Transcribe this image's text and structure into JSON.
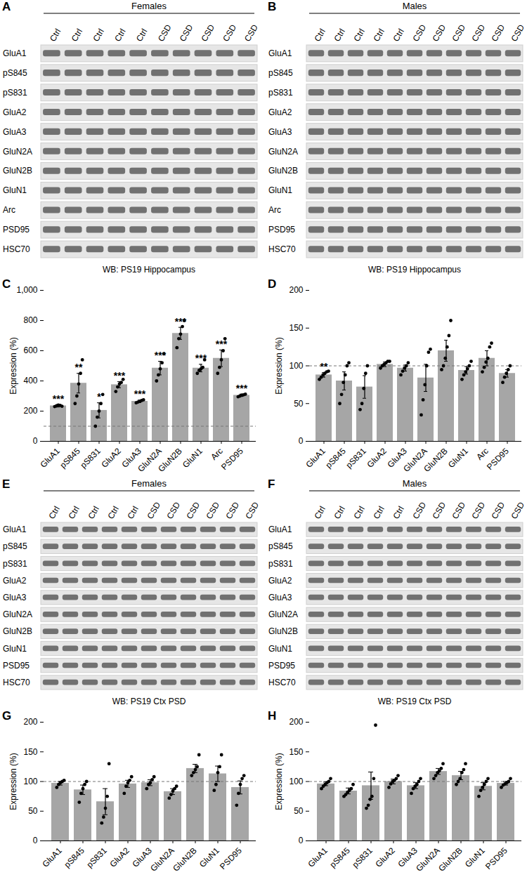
{
  "panels": [
    {
      "letter": "A",
      "header": "Females",
      "lanes": [
        "Ctrl",
        "Ctrl",
        "Ctrl",
        "Ctrl",
        "Ctrl",
        "CSD",
        "CSD",
        "CSD",
        "CSD",
        "CSD"
      ],
      "rows": [
        "GluA1",
        "pS845",
        "pS831",
        "GluA2",
        "GluA3",
        "GluN2A",
        "GluN2B",
        "GluN1",
        "Arc",
        "PSD95",
        "HSC70"
      ],
      "caption": "WB: PS19 Hippocampus"
    },
    {
      "letter": "B",
      "header": "Males",
      "lanes": [
        "Ctrl",
        "Ctrl",
        "Ctrl",
        "Ctrl",
        "Ctrl",
        "CSD",
        "CSD",
        "CSD",
        "CSD",
        "CSD",
        "CSD"
      ],
      "rows": [
        "GluA1",
        "pS845",
        "pS831",
        "GluA2",
        "GluA3",
        "GluN2A",
        "GluN2B",
        "GluN1",
        "Arc",
        "PSD95",
        "HSC70"
      ],
      "caption": "WB: PS19 Hippocampus"
    },
    {
      "letter": "E",
      "header": "Females",
      "lanes": [
        "Ctrl",
        "Ctrl",
        "Ctrl",
        "Ctrl",
        "Ctrl",
        "CSD",
        "CSD",
        "CSD",
        "CSD",
        "CSD",
        "CSD"
      ],
      "rows": [
        "GluA1",
        "pS845",
        "pS831",
        "GluA2",
        "GluA3",
        "GluN2A",
        "GluN2B",
        "GluN1",
        "PSD95",
        "HSC70"
      ],
      "caption": "WB: PS19 Ctx PSD"
    },
    {
      "letter": "F",
      "header": "Males",
      "lanes": [
        "Ctrl",
        "Ctrl",
        "Ctrl",
        "Ctrl",
        "Ctrl",
        "CSD",
        "CSD",
        "CSD",
        "CSD",
        "CSD",
        "CSD"
      ],
      "rows": [
        "GluA1",
        "pS845",
        "pS831",
        "GluA2",
        "GluA3",
        "GluN2A",
        "GluN2B",
        "GluN1",
        "PSD95",
        "HSC70"
      ],
      "caption": "WB: PS19 Ctx PSD"
    }
  ],
  "chart_data": [
    {
      "panel": "C",
      "type": "bar",
      "color": "#a6a6a6",
      "ylabel": "Expression (%)",
      "ylim": [
        0,
        1000
      ],
      "yticks": [
        0,
        200,
        400,
        600,
        800,
        1000
      ],
      "reference_line": 100,
      "categories": [
        "GluA1",
        "pS845",
        "pS831",
        "GluA2",
        "GluA3",
        "GluN2A",
        "GluN2B",
        "GluN1",
        "Arc",
        "PSD95"
      ],
      "values": [
        235,
        385,
        205,
        375,
        265,
        485,
        715,
        485,
        550,
        305
      ],
      "errors": [
        8,
        65,
        50,
        20,
        8,
        45,
        40,
        25,
        55,
        8
      ],
      "points": [
        [
          230,
          235,
          240,
          238,
          232
        ],
        [
          250,
          300,
          380,
          450,
          540
        ],
        [
          100,
          160,
          200,
          250,
          310
        ],
        [
          330,
          360,
          380,
          390,
          410
        ],
        [
          255,
          260,
          265,
          270,
          275
        ],
        [
          400,
          440,
          480,
          520,
          580
        ],
        [
          620,
          680,
          710,
          760,
          800
        ],
        [
          450,
          470,
          480,
          490,
          540
        ],
        [
          450,
          490,
          540,
          600,
          680
        ],
        [
          295,
          300,
          305,
          308,
          312
        ]
      ],
      "annotations": [
        "***",
        "**",
        "*",
        "***",
        "***",
        "***",
        "***",
        "***",
        "***",
        "***"
      ]
    },
    {
      "panel": "D",
      "type": "bar",
      "color": "#a6a6a6",
      "ylabel": "Expression (%)",
      "ylim": [
        0,
        200
      ],
      "yticks": [
        0,
        50,
        100,
        150,
        200
      ],
      "reference_line": 100,
      "categories": [
        "GluA1",
        "pS845",
        "pS831",
        "GluA2",
        "GluA3",
        "GluN2A",
        "GluN2B",
        "GluN1",
        "Arc",
        "PSD95"
      ],
      "values": [
        88,
        80,
        72,
        102,
        97,
        84,
        120,
        94,
        110,
        90
      ],
      "errors": [
        3,
        12,
        15,
        3,
        4,
        18,
        14,
        5,
        10,
        5
      ],
      "points": [
        [
          82,
          85,
          88,
          90,
          92,
          93
        ],
        [
          50,
          62,
          78,
          88,
          100,
          104
        ],
        [
          42,
          50,
          70,
          90,
          100
        ],
        [
          97,
          100,
          102,
          104,
          106,
          106
        ],
        [
          88,
          93,
          97,
          100,
          104
        ],
        [
          35,
          55,
          75,
          100,
          118,
          122
        ],
        [
          95,
          100,
          110,
          125,
          140,
          160
        ],
        [
          82,
          88,
          92,
          96,
          100,
          106
        ],
        [
          92,
          98,
          105,
          110,
          125,
          130
        ],
        [
          78,
          85,
          90,
          95,
          100
        ]
      ],
      "annotations": [
        "**",
        null,
        null,
        null,
        null,
        null,
        null,
        null,
        null,
        null
      ]
    },
    {
      "panel": "G",
      "type": "bar",
      "color": "#a6a6a6",
      "ylabel": "Expression (%)",
      "ylim": [
        0,
        200
      ],
      "yticks": [
        0,
        50,
        100,
        150,
        200
      ],
      "reference_line": 100,
      "categories": [
        "GluA1",
        "pS845",
        "pS831",
        "GluA2",
        "GluA3",
        "GluN2A",
        "GluN2B",
        "GluN1",
        "PSD95"
      ],
      "values": [
        97,
        86,
        66,
        96,
        98,
        83,
        122,
        113,
        90
      ],
      "errors": [
        3,
        8,
        22,
        6,
        5,
        5,
        7,
        13,
        11
      ],
      "points": [
        [
          90,
          95,
          98,
          100,
          102
        ],
        [
          65,
          80,
          88,
          95,
          100
        ],
        [
          30,
          40,
          55,
          75,
          130
        ],
        [
          80,
          92,
          98,
          102,
          108
        ],
        [
          88,
          95,
          98,
          103,
          108
        ],
        [
          72,
          78,
          84,
          88,
          92
        ],
        [
          110,
          115,
          120,
          125,
          145
        ],
        [
          85,
          95,
          115,
          125,
          145
        ],
        [
          60,
          80,
          95,
          105,
          110
        ]
      ]
    },
    {
      "panel": "H",
      "type": "bar",
      "color": "#a6a6a6",
      "ylabel": "Expression (%)",
      "ylim": [
        0,
        200
      ],
      "yticks": [
        0,
        50,
        100,
        150,
        200
      ],
      "reference_line": 100,
      "categories": [
        "GluA1",
        "pS845",
        "pS831",
        "GluA2",
        "GluA3",
        "GluN2A",
        "GluN2B",
        "GluN1",
        "PSD95"
      ],
      "values": [
        96,
        84,
        93,
        100,
        93,
        117,
        110,
        92,
        97
      ],
      "errors": [
        3,
        5,
        23,
        4,
        5,
        5,
        7,
        6,
        3
      ],
      "points": [
        [
          88,
          92,
          95,
          98,
          100,
          105
        ],
        [
          75,
          78,
          82,
          85,
          88,
          95
        ],
        [
          55,
          60,
          70,
          75,
          105,
          195
        ],
        [
          90,
          96,
          100,
          102,
          105,
          110
        ],
        [
          80,
          88,
          92,
          95,
          100,
          105
        ],
        [
          105,
          110,
          115,
          118,
          122,
          130
        ],
        [
          95,
          100,
          105,
          115,
          120,
          130
        ],
        [
          75,
          85,
          90,
          95,
          100,
          105
        ],
        [
          90,
          94,
          96,
          98,
          100,
          105
        ]
      ]
    }
  ]
}
